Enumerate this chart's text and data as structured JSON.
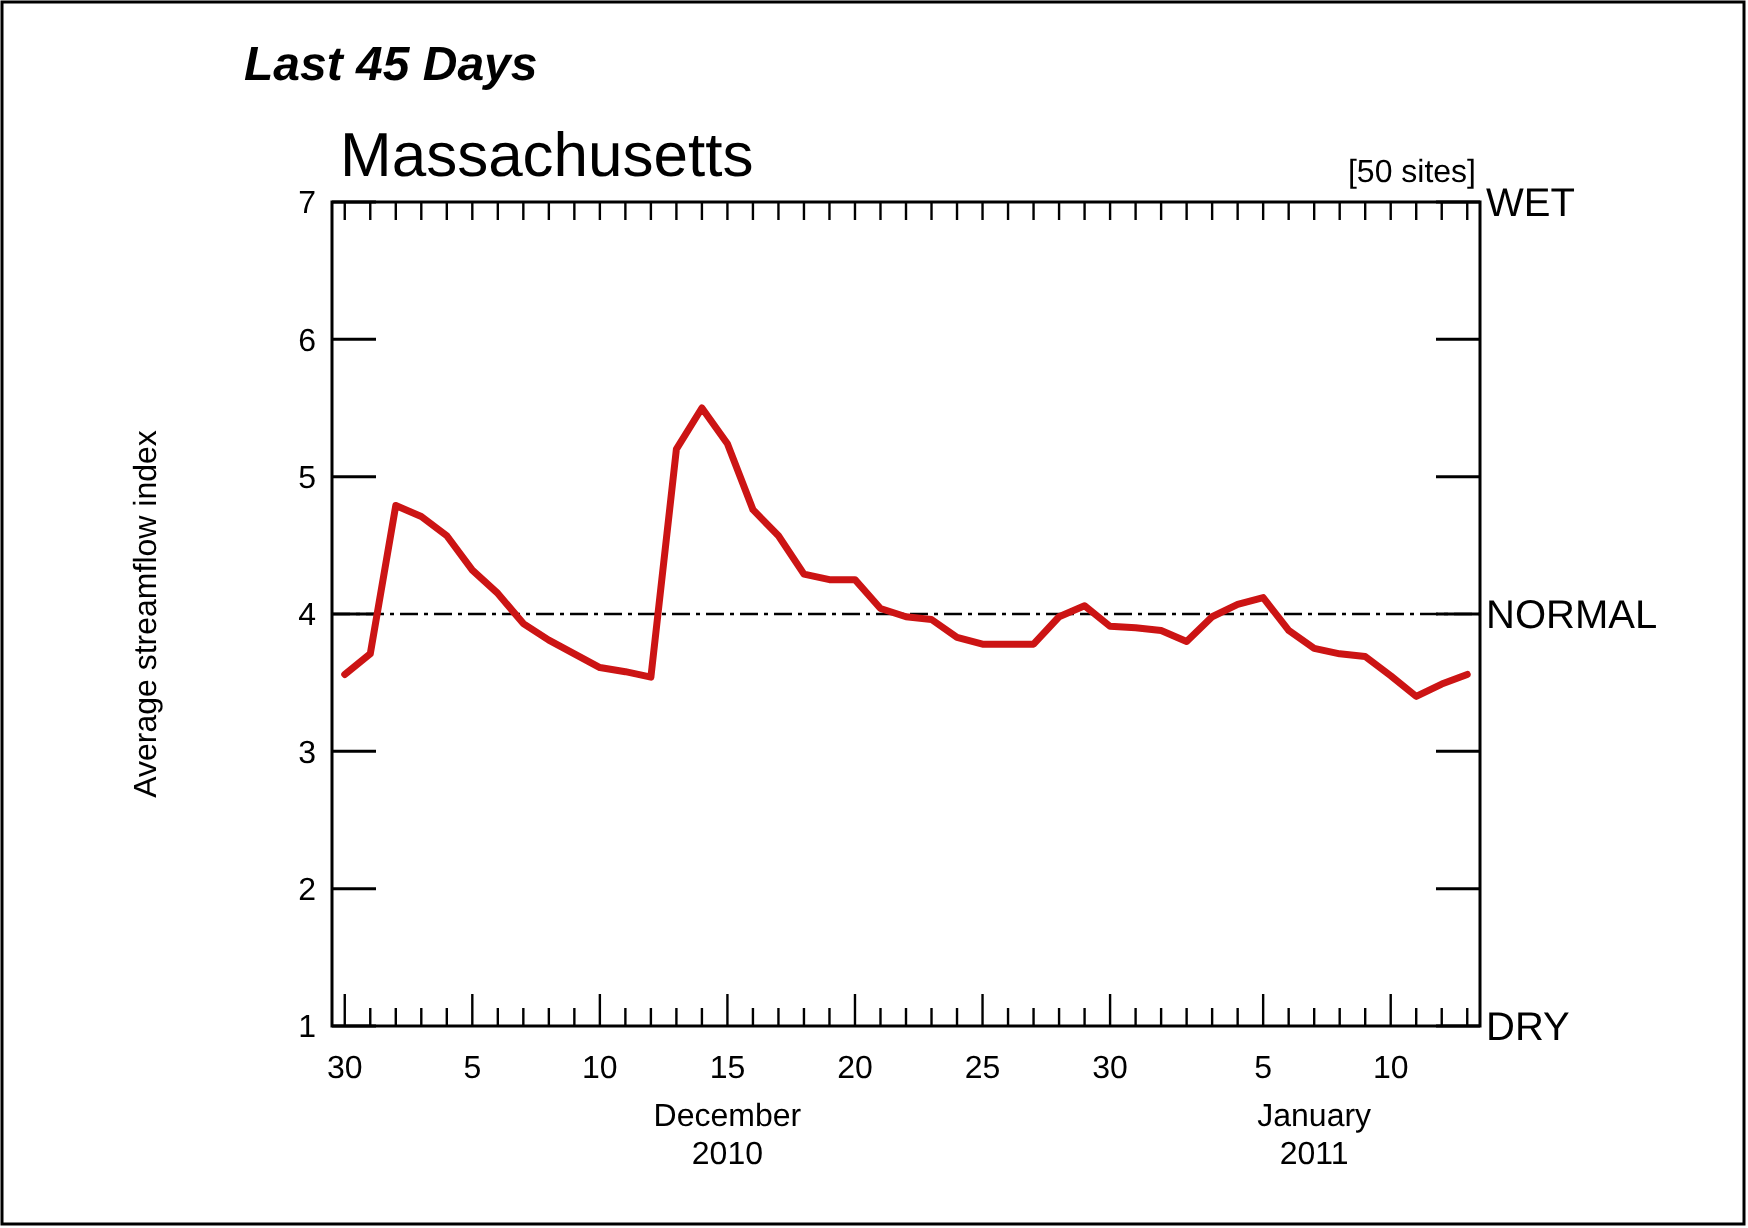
{
  "chart_data": {
    "type": "line",
    "title": "Last 45 Days",
    "subtitle": "Massachusetts",
    "ylabel": "Average streamflow index",
    "annotations": [
      "[50 sites]",
      "WET",
      "DRY",
      "December 2010",
      "January 2011"
    ],
    "x": [
      "2010-11-30",
      "2010-12-01",
      "2010-12-02",
      "2010-12-03",
      "2010-12-04",
      "2010-12-05",
      "2010-12-06",
      "2010-12-07",
      "2010-12-08",
      "2010-12-09",
      "2010-12-10",
      "2010-12-11",
      "2010-12-12",
      "2010-12-13",
      "2010-12-14",
      "2010-12-15",
      "2010-12-16",
      "2010-12-17",
      "2010-12-18",
      "2010-12-19",
      "2010-12-20",
      "2010-12-21",
      "2010-12-22",
      "2010-12-23",
      "2010-12-24",
      "2010-12-25",
      "2010-12-26",
      "2010-12-27",
      "2010-12-28",
      "2010-12-29",
      "2010-12-30",
      "2010-12-31",
      "2011-01-01",
      "2011-01-02",
      "2011-01-03",
      "2011-01-04",
      "2011-01-05",
      "2011-01-06",
      "2011-01-07",
      "2011-01-08",
      "2011-01-09",
      "2011-01-10",
      "2011-01-11",
      "2011-01-12",
      "2011-01-13"
    ],
    "series": [
      {
        "color": "#cc1414",
        "values": [
          3.56,
          3.71,
          4.79,
          4.71,
          4.57,
          4.32,
          4.15,
          3.93,
          3.81,
          3.71,
          3.61,
          3.58,
          3.54,
          5.2,
          5.5,
          5.24,
          4.76,
          4.57,
          4.29,
          4.25,
          4.25,
          4.04,
          3.98,
          3.96,
          3.83,
          3.78,
          3.78,
          3.78,
          3.98,
          4.06,
          3.91,
          3.9,
          3.88,
          3.8,
          3.98,
          4.07,
          4.12,
          3.88,
          3.75,
          3.71,
          3.69,
          3.55,
          3.4,
          3.49,
          3.56
        ]
      }
    ],
    "xlim": [
      "2010-11-29T12:00",
      "2011-01-13T12:00"
    ],
    "xticks": [
      {
        "value": "2010-11-30",
        "label": "30"
      },
      {
        "value": "2010-12-01",
        "label": null
      },
      {
        "value": "2010-12-02",
        "label": null
      },
      {
        "value": "2010-12-03",
        "label": null
      },
      {
        "value": "2010-12-04",
        "label": null
      },
      {
        "value": "2010-12-05",
        "label": "5"
      },
      {
        "value": "2010-12-06",
        "label": null
      },
      {
        "value": "2010-12-07",
        "label": null
      },
      {
        "value": "2010-12-08",
        "label": null
      },
      {
        "value": "2010-12-09",
        "label": null
      },
      {
        "value": "2010-12-10",
        "label": "10"
      },
      {
        "value": "2010-12-11",
        "label": null
      },
      {
        "value": "2010-12-12",
        "label": null
      },
      {
        "value": "2010-12-13",
        "label": null
      },
      {
        "value": "2010-12-14",
        "label": null
      },
      {
        "value": "2010-12-15",
        "label": "15"
      },
      {
        "value": "2010-12-16",
        "label": null
      },
      {
        "value": "2010-12-17",
        "label": null
      },
      {
        "value": "2010-12-18",
        "label": null
      },
      {
        "value": "2010-12-19",
        "label": null
      },
      {
        "value": "2010-12-20",
        "label": "20"
      },
      {
        "value": "2010-12-21",
        "label": null
      },
      {
        "value": "2010-12-22",
        "label": null
      },
      {
        "value": "2010-12-23",
        "label": null
      },
      {
        "value": "2010-12-24",
        "label": null
      },
      {
        "value": "2010-12-25",
        "label": "25"
      },
      {
        "value": "2010-12-26",
        "label": null
      },
      {
        "value": "2010-12-27",
        "label": null
      },
      {
        "value": "2010-12-28",
        "label": null
      },
      {
        "value": "2010-12-29",
        "label": null
      },
      {
        "value": "2010-12-30",
        "label": "30"
      },
      {
        "value": "2010-12-31",
        "label": null
      },
      {
        "value": "2011-01-01",
        "label": null
      },
      {
        "value": "2011-01-02",
        "label": null
      },
      {
        "value": "2011-01-03",
        "label": null
      },
      {
        "value": "2011-01-04",
        "label": null
      },
      {
        "value": "2011-01-05",
        "label": "5"
      },
      {
        "value": "2011-01-06",
        "label": null
      },
      {
        "value": "2011-01-07",
        "label": null
      },
      {
        "value": "2011-01-08",
        "label": null
      },
      {
        "value": "2011-01-09",
        "label": null
      },
      {
        "value": "2011-01-10",
        "label": "10"
      },
      {
        "value": "2011-01-11",
        "label": null
      },
      {
        "value": "2011-01-12",
        "label": null
      },
      {
        "value": "2011-01-13",
        "label": null
      }
    ],
    "ylim": [
      1,
      7
    ],
    "yticks": [
      1,
      2,
      3,
      4,
      5,
      6,
      7
    ],
    "ref_lines": [
      {
        "axis": "y",
        "value": 4,
        "label": "NORMAL",
        "color": "#000000",
        "line_style": "dashdot"
      }
    ],
    "marker": "none",
    "line_style": "solid"
  }
}
